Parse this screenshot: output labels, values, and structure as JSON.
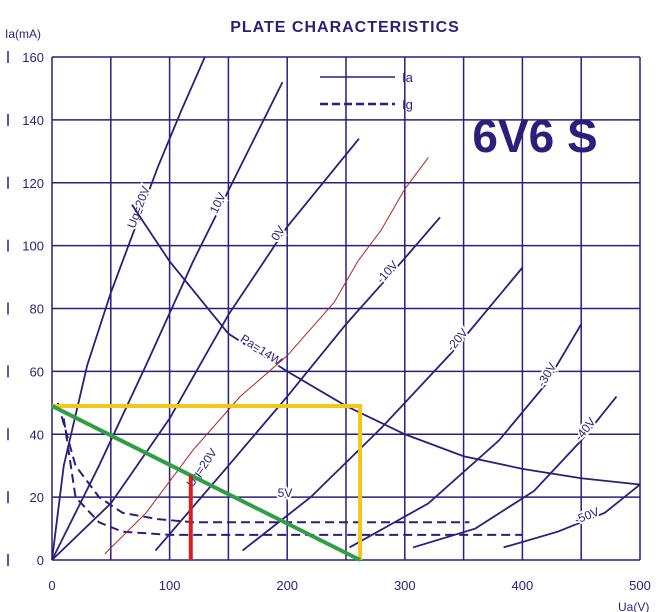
{
  "chart_data": {
    "type": "line",
    "title": "PLATE CHARACTERISTICS",
    "tube": "6V6 S",
    "xlabel": "Ua(V)",
    "ylabel": "Ia(mA)",
    "xlim": [
      0,
      500
    ],
    "ylim": [
      0,
      160
    ],
    "xticks": [
      0,
      100,
      200,
      300,
      400,
      500
    ],
    "yticks": [
      0,
      20,
      40,
      60,
      80,
      100,
      120,
      140,
      160
    ],
    "grid": true,
    "legend": {
      "position": "top-center",
      "entries": [
        {
          "label": "Ia",
          "style": "solid"
        },
        {
          "label": "Ig",
          "style": "dashed"
        }
      ]
    },
    "colors": {
      "ink": "#2a1f7a",
      "red": "#d42020",
      "yellow": "#f5c518",
      "green": "#2ea043",
      "wiggle": "#b22222"
    },
    "series": [
      {
        "name": "Ug=20V",
        "style": "solid",
        "label": "Ug=20V",
        "points": [
          [
            0,
            0
          ],
          [
            10,
            30
          ],
          [
            30,
            62
          ],
          [
            50,
            85
          ],
          [
            70,
            105
          ],
          [
            90,
            125
          ],
          [
            110,
            143
          ],
          [
            130,
            160
          ]
        ]
      },
      {
        "name": "10V",
        "style": "solid",
        "label": "10V",
        "points": [
          [
            0,
            0
          ],
          [
            40,
            30
          ],
          [
            80,
            62
          ],
          [
            120,
            95
          ],
          [
            160,
            125
          ],
          [
            196,
            152
          ]
        ]
      },
      {
        "name": "0V",
        "style": "solid",
        "label": "0V",
        "points": [
          [
            0,
            0
          ],
          [
            50,
            18
          ],
          [
            100,
            45
          ],
          [
            150,
            78
          ],
          [
            200,
            106
          ],
          [
            261,
            134
          ]
        ]
      },
      {
        "name": "-10V",
        "style": "solid",
        "label": "-10V",
        "points": [
          [
            88,
            3
          ],
          [
            150,
            30
          ],
          [
            200,
            52
          ],
          [
            250,
            75
          ],
          [
            300,
            96
          ],
          [
            330,
            109
          ]
        ]
      },
      {
        "name": "-20V",
        "style": "solid",
        "label": "-20V",
        "points": [
          [
            162,
            3
          ],
          [
            220,
            20
          ],
          [
            280,
            42
          ],
          [
            340,
            66
          ],
          [
            400,
            93
          ]
        ]
      },
      {
        "name": "-30V",
        "style": "solid",
        "label": "-30V",
        "points": [
          [
            253,
            4
          ],
          [
            320,
            18
          ],
          [
            380,
            38
          ],
          [
            420,
            56
          ],
          [
            450,
            75
          ]
        ]
      },
      {
        "name": "-40V",
        "style": "solid",
        "label": "-40V",
        "points": [
          [
            307,
            4
          ],
          [
            360,
            10
          ],
          [
            410,
            22
          ],
          [
            450,
            38
          ],
          [
            480,
            52
          ]
        ]
      },
      {
        "name": "-50V",
        "style": "solid",
        "label": "-50V",
        "points": [
          [
            384,
            4
          ],
          [
            430,
            9
          ],
          [
            470,
            15
          ],
          [
            500,
            24
          ]
        ]
      },
      {
        "name": "Pa=14W",
        "style": "solid",
        "label": "Pa=14W",
        "points": [
          [
            68,
            113
          ],
          [
            100,
            95
          ],
          [
            150,
            72
          ],
          [
            200,
            60
          ],
          [
            250,
            49
          ],
          [
            300,
            40
          ],
          [
            350,
            33
          ],
          [
            400,
            29
          ],
          [
            450,
            26
          ],
          [
            500,
            24
          ]
        ]
      },
      {
        "name": "Ig Ug=20V",
        "style": "dashed",
        "label": "Ug=20V",
        "points": [
          [
            5,
            50
          ],
          [
            20,
            30
          ],
          [
            40,
            20
          ],
          [
            60,
            15
          ],
          [
            90,
            13
          ],
          [
            120,
            12
          ],
          [
            355,
            12
          ]
        ]
      },
      {
        "name": "Ig 5V",
        "style": "dashed",
        "label": "5V",
        "points": [
          [
            10,
            45
          ],
          [
            20,
            20
          ],
          [
            40,
            12
          ],
          [
            60,
            9
          ],
          [
            100,
            8
          ],
          [
            400,
            8
          ]
        ]
      }
    ],
    "annotations": {
      "wiggle_line": [
        [
          45,
          2
        ],
        [
          80,
          15
        ],
        [
          120,
          35
        ],
        [
          160,
          52
        ],
        [
          200,
          65
        ],
        [
          240,
          82
        ],
        [
          260,
          95
        ],
        [
          280,
          105
        ],
        [
          300,
          118
        ],
        [
          320,
          128
        ]
      ],
      "yellow_box": {
        "ua": 262,
        "ia": 49
      },
      "green_load_line": [
        [
          0,
          49
        ],
        [
          262,
          0
        ]
      ],
      "red_marker": {
        "ua": 118,
        "ia": 27
      }
    }
  }
}
